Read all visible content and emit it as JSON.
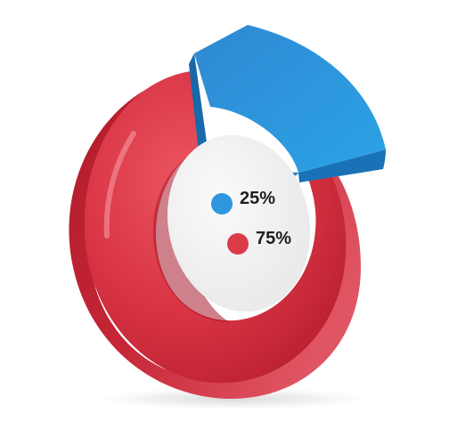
{
  "chart_data": {
    "type": "pie",
    "style": "3d-donut-exploded",
    "categories": [
      "25%",
      "75%"
    ],
    "values": [
      25,
      75
    ],
    "legend_placement": "center",
    "colors": {
      "slice_1": "#2E97DE",
      "slice_2": "#DB3A48",
      "center_disc": "#F1F1F1"
    },
    "labels": [
      {
        "text": "25%",
        "color": "#2E97DE"
      },
      {
        "text": "75%",
        "color": "#DB3A48"
      }
    ]
  }
}
